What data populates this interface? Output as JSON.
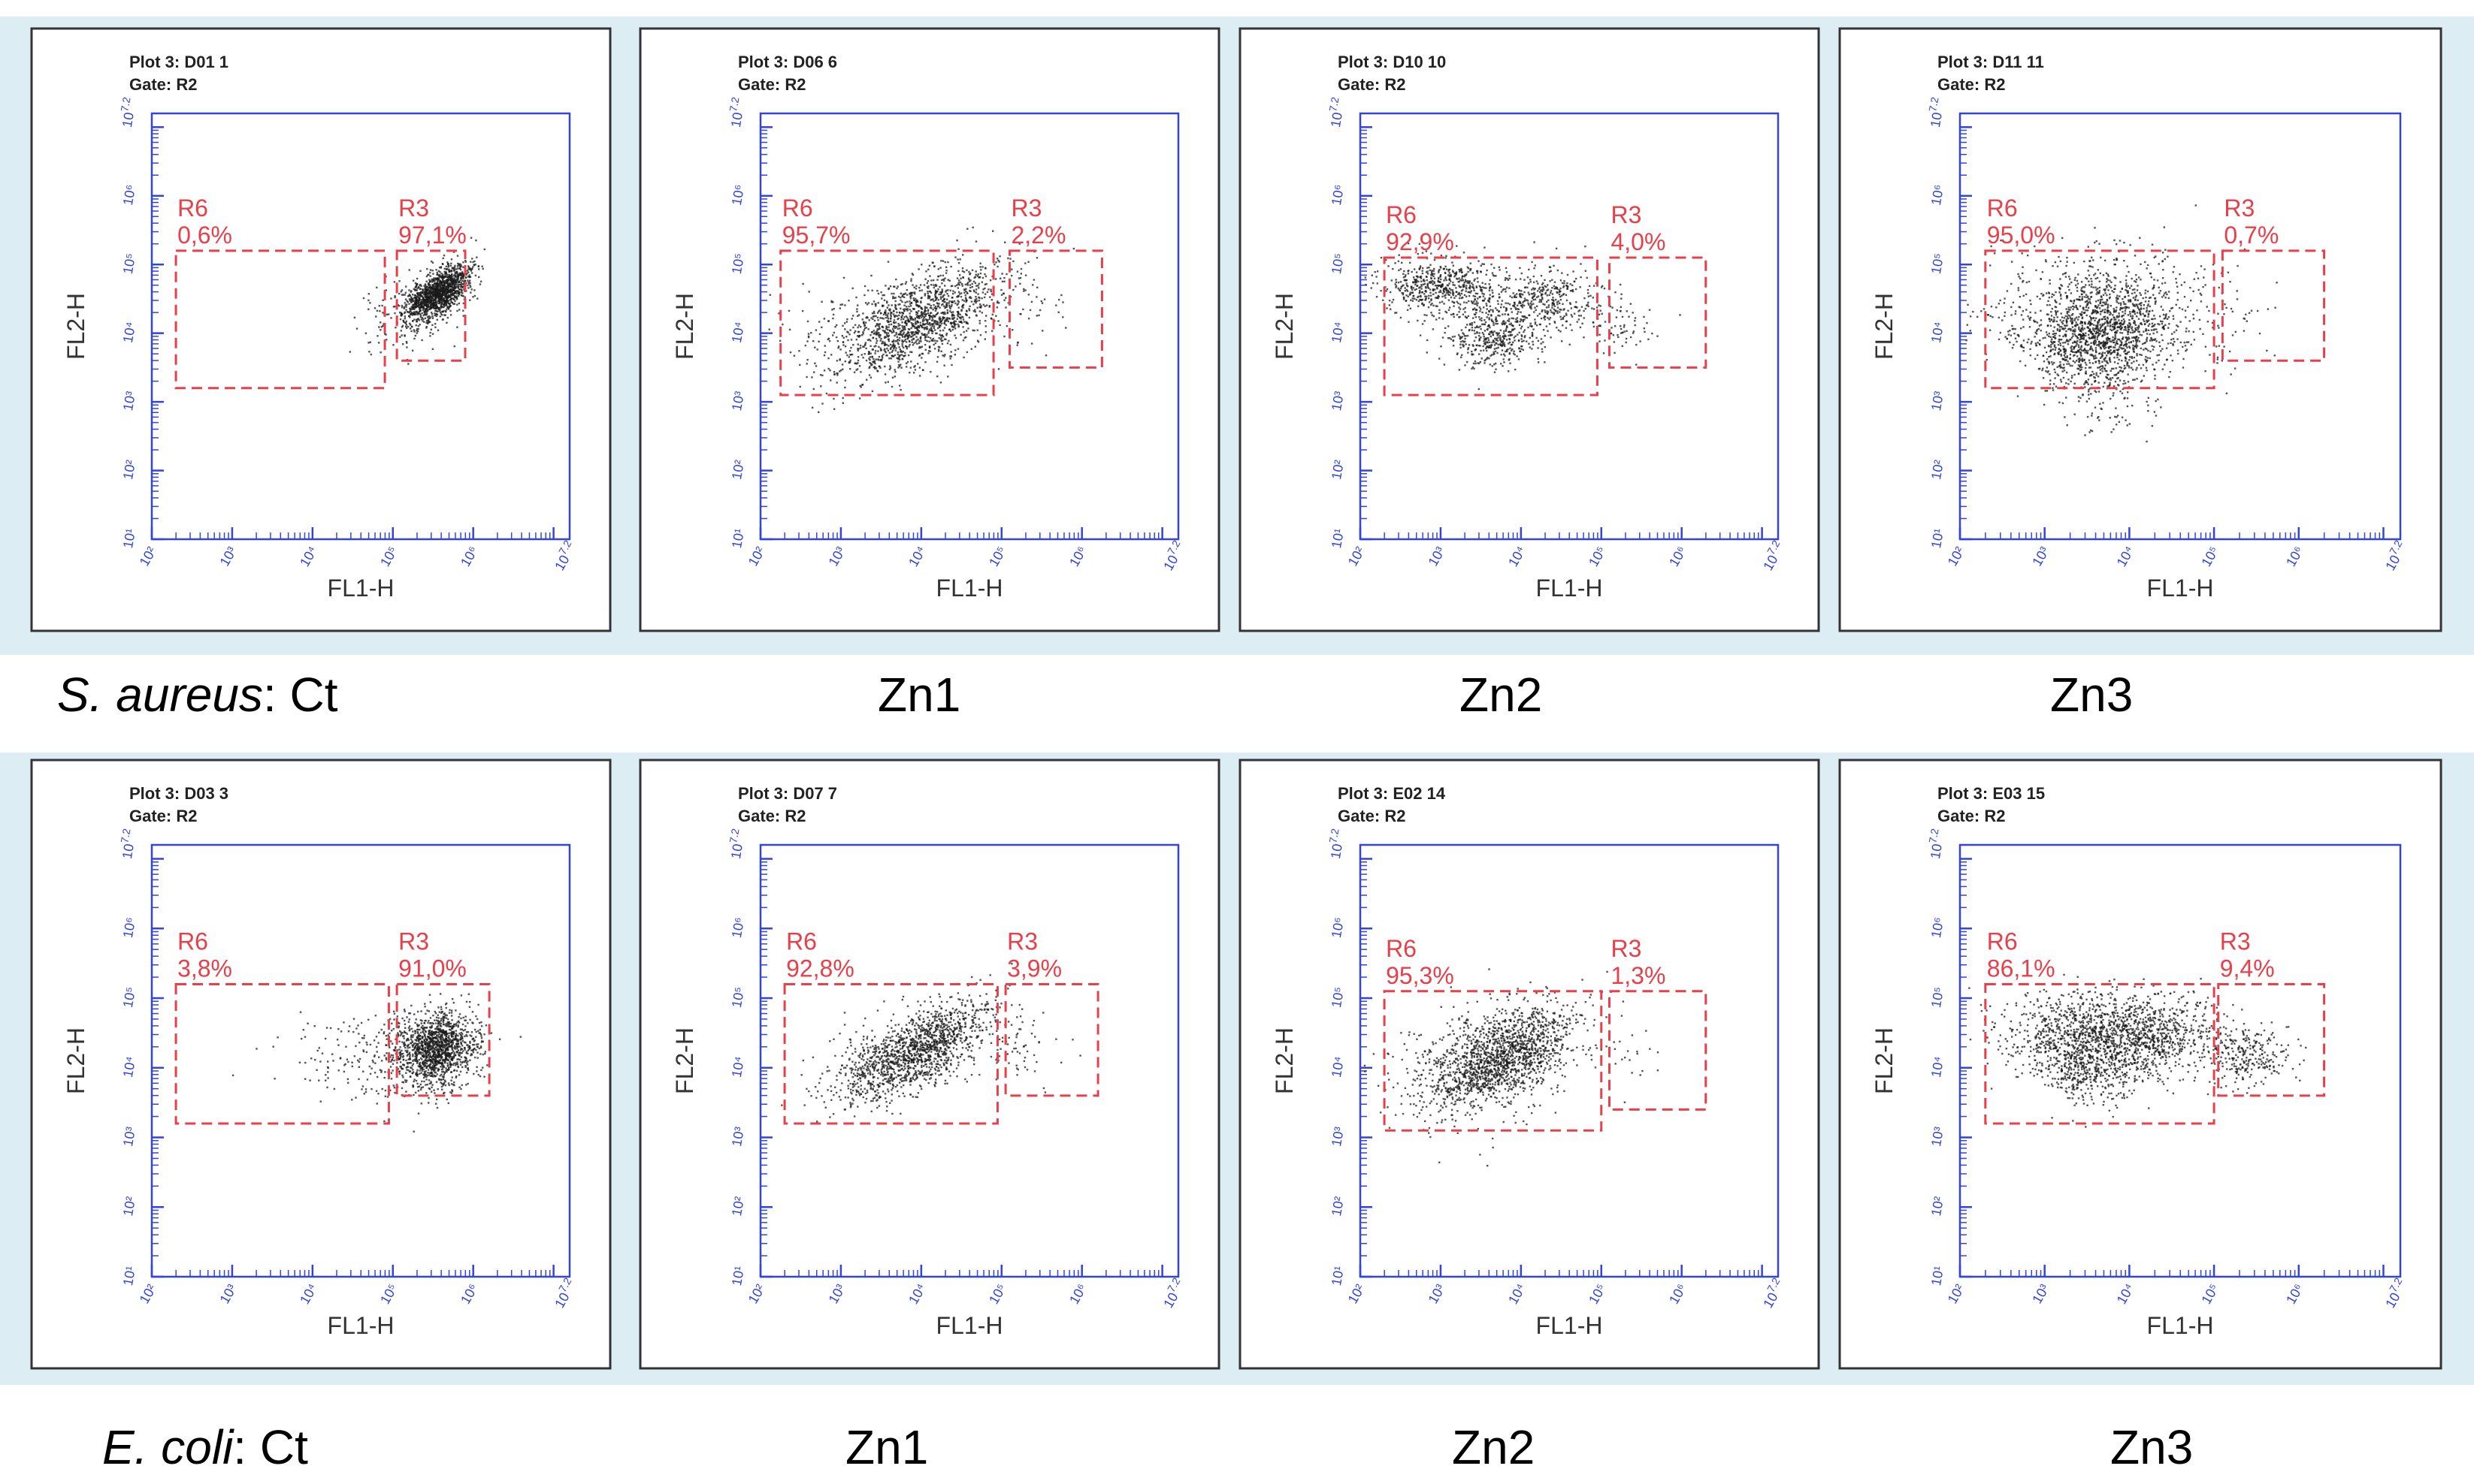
{
  "chart_data": [
    {
      "type": "scatter",
      "species": "S. aureus",
      "group": "Ct",
      "plot_title": "Plot 3: D01 1",
      "gate": "Gate: R2",
      "xlabel": "FL1-H",
      "ylabel": "FL2-H",
      "xlim": [
        2,
        7.2
      ],
      "ylim": [
        1,
        7.2
      ],
      "x_ticks": [
        {
          "v": 2,
          "label": "10²"
        },
        {
          "v": 3,
          "label": "10³"
        },
        {
          "v": 4,
          "label": "10⁴"
        },
        {
          "v": 5,
          "label": "10⁵"
        },
        {
          "v": 6,
          "label": "10⁶"
        },
        {
          "v": 7.2,
          "label": "10^7.2"
        }
      ],
      "y_ticks": [
        {
          "v": 1,
          "label": "10¹"
        },
        {
          "v": 2,
          "label": "10²"
        },
        {
          "v": 3,
          "label": "10³"
        },
        {
          "v": 4,
          "label": "10⁴"
        },
        {
          "v": 5,
          "label": "10⁵"
        },
        {
          "v": 6,
          "label": "10⁶"
        },
        {
          "v": 7.2,
          "label": "10^7.2"
        }
      ],
      "regions": [
        {
          "name": "R6",
          "percent": "0,6%",
          "x": [
            2.3,
            4.9
          ],
          "y": [
            3.2,
            5.2
          ]
        },
        {
          "name": "R3",
          "percent": "97,1%",
          "x": [
            5.05,
            5.9
          ],
          "y": [
            3.6,
            5.2
          ]
        }
      ],
      "clusters": [
        {
          "cx": 5.55,
          "cy": 4.6,
          "sx": 0.2,
          "sy": 0.2,
          "rho": 0.6,
          "n": 1400
        },
        {
          "cx": 5.2,
          "cy": 4.3,
          "sx": 0.35,
          "sy": 0.3,
          "rho": 0.3,
          "n": 150
        }
      ],
      "seed": 11
    },
    {
      "type": "scatter",
      "species": "S. aureus",
      "group": "Zn1",
      "plot_title": "Plot 3: D06 6",
      "gate": "Gate: R2",
      "xlabel": "FL1-H",
      "ylabel": "FL2-H",
      "xlim": [
        2,
        7.2
      ],
      "ylim": [
        1,
        7.2
      ],
      "x_ticks": [
        {
          "v": 2,
          "label": "10²"
        },
        {
          "v": 3,
          "label": "10³"
        },
        {
          "v": 4,
          "label": "10⁴"
        },
        {
          "v": 5,
          "label": "10⁵"
        },
        {
          "v": 6,
          "label": "10⁶"
        },
        {
          "v": 7.2,
          "label": "10^7.2"
        }
      ],
      "y_ticks": [
        {
          "v": 1,
          "label": "10¹"
        },
        {
          "v": 2,
          "label": "10²"
        },
        {
          "v": 3,
          "label": "10³"
        },
        {
          "v": 4,
          "label": "10⁴"
        },
        {
          "v": 5,
          "label": "10⁵"
        },
        {
          "v": 6,
          "label": "10⁶"
        },
        {
          "v": 7.2,
          "label": "10^7.2"
        }
      ],
      "regions": [
        {
          "name": "R6",
          "percent": "95,7%",
          "x": [
            2.25,
            4.9
          ],
          "y": [
            3.1,
            5.2
          ]
        },
        {
          "name": "R3",
          "percent": "2,2%",
          "x": [
            5.1,
            6.25
          ],
          "y": [
            3.5,
            5.2
          ]
        }
      ],
      "clusters": [
        {
          "cx": 4.0,
          "cy": 4.2,
          "sx": 0.5,
          "sy": 0.4,
          "rho": 0.6,
          "n": 1300
        },
        {
          "cx": 3.3,
          "cy": 4.0,
          "sx": 0.5,
          "sy": 0.4,
          "rho": 0.2,
          "n": 250
        },
        {
          "cx": 5.4,
          "cy": 4.3,
          "sx": 0.3,
          "sy": 0.3,
          "rho": 0.0,
          "n": 35
        }
      ],
      "seed": 23
    },
    {
      "type": "scatter",
      "species": "S. aureus",
      "group": "Zn2",
      "plot_title": "Plot 3: D10 10",
      "gate": "Gate: R2",
      "xlabel": "FL1-H",
      "ylabel": "FL2-H",
      "xlim": [
        2,
        7.2
      ],
      "ylim": [
        1,
        7.2
      ],
      "x_ticks": [
        {
          "v": 2,
          "label": "10²"
        },
        {
          "v": 3,
          "label": "10³"
        },
        {
          "v": 4,
          "label": "10⁴"
        },
        {
          "v": 5,
          "label": "10⁵"
        },
        {
          "v": 6,
          "label": "10⁶"
        },
        {
          "v": 7.2,
          "label": "10^7.2"
        }
      ],
      "y_ticks": [
        {
          "v": 1,
          "label": "10¹"
        },
        {
          "v": 2,
          "label": "10²"
        },
        {
          "v": 3,
          "label": "10³"
        },
        {
          "v": 4,
          "label": "10⁴"
        },
        {
          "v": 5,
          "label": "10⁵"
        },
        {
          "v": 6,
          "label": "10⁶"
        },
        {
          "v": 7.2,
          "label": "10^7.2"
        }
      ],
      "regions": [
        {
          "name": "R6",
          "percent": "92,9%",
          "x": [
            2.3,
            4.95
          ],
          "y": [
            3.1,
            5.1
          ]
        },
        {
          "name": "R3",
          "percent": "4,0%",
          "x": [
            5.1,
            6.3
          ],
          "y": [
            3.5,
            5.1
          ]
        }
      ],
      "clusters": [
        {
          "cx": 3.0,
          "cy": 4.7,
          "sx": 0.35,
          "sy": 0.2,
          "rho": 0.0,
          "n": 550
        },
        {
          "cx": 3.6,
          "cy": 4.0,
          "sx": 0.3,
          "sy": 0.25,
          "rho": 0.0,
          "n": 450
        },
        {
          "cx": 4.3,
          "cy": 4.5,
          "sx": 0.4,
          "sy": 0.25,
          "rho": 0.0,
          "n": 400
        },
        {
          "cx": 5.3,
          "cy": 4.1,
          "sx": 0.25,
          "sy": 0.2,
          "rho": 0.0,
          "n": 60
        }
      ],
      "seed": 37
    },
    {
      "type": "scatter",
      "species": "S. aureus",
      "group": "Zn3",
      "plot_title": "Plot 3: D11 11",
      "gate": "Gate: R2",
      "xlabel": "FL1-H",
      "ylabel": "FL2-H",
      "xlim": [
        2,
        7.2
      ],
      "ylim": [
        1,
        7.2
      ],
      "x_ticks": [
        {
          "v": 2,
          "label": "10²"
        },
        {
          "v": 3,
          "label": "10³"
        },
        {
          "v": 4,
          "label": "10⁴"
        },
        {
          "v": 5,
          "label": "10⁵"
        },
        {
          "v": 6,
          "label": "10⁶"
        },
        {
          "v": 7.2,
          "label": "10^7.2"
        }
      ],
      "y_ticks": [
        {
          "v": 1,
          "label": "10¹"
        },
        {
          "v": 2,
          "label": "10²"
        },
        {
          "v": 3,
          "label": "10³"
        },
        {
          "v": 4,
          "label": "10⁴"
        },
        {
          "v": 5,
          "label": "10⁵"
        },
        {
          "v": 6,
          "label": "10⁶"
        },
        {
          "v": 7.2,
          "label": "10^7.2"
        }
      ],
      "regions": [
        {
          "name": "R6",
          "percent": "95,0%",
          "x": [
            2.3,
            5.0
          ],
          "y": [
            3.2,
            5.2
          ]
        },
        {
          "name": "R3",
          "percent": "0,7%",
          "x": [
            5.1,
            6.3
          ],
          "y": [
            3.6,
            5.2
          ]
        }
      ],
      "clusters": [
        {
          "cx": 3.6,
          "cy": 3.9,
          "sx": 0.35,
          "sy": 0.35,
          "rho": 0.0,
          "n": 900
        },
        {
          "cx": 3.7,
          "cy": 4.3,
          "sx": 0.7,
          "sy": 0.45,
          "rho": 0.0,
          "n": 900
        },
        {
          "cx": 3.7,
          "cy": 3.2,
          "sx": 0.3,
          "sy": 0.35,
          "rho": 0.0,
          "n": 120
        },
        {
          "cx": 5.4,
          "cy": 4.2,
          "sx": 0.25,
          "sy": 0.25,
          "rho": 0.0,
          "n": 12
        }
      ],
      "seed": 51
    },
    {
      "type": "scatter",
      "species": "E. coli",
      "group": "Ct",
      "plot_title": "Plot 3: D03 3",
      "gate": "Gate: R2",
      "xlabel": "FL1-H",
      "ylabel": "FL2-H",
      "xlim": [
        2,
        7.2
      ],
      "ylim": [
        1,
        7.2
      ],
      "x_ticks": [
        {
          "v": 2,
          "label": "10²"
        },
        {
          "v": 3,
          "label": "10³"
        },
        {
          "v": 4,
          "label": "10⁴"
        },
        {
          "v": 5,
          "label": "10⁵"
        },
        {
          "v": 6,
          "label": "10⁶"
        },
        {
          "v": 7.2,
          "label": "10^7.2"
        }
      ],
      "y_ticks": [
        {
          "v": 1,
          "label": "10¹"
        },
        {
          "v": 2,
          "label": "10²"
        },
        {
          "v": 3,
          "label": "10³"
        },
        {
          "v": 4,
          "label": "10⁴"
        },
        {
          "v": 5,
          "label": "10⁵"
        },
        {
          "v": 6,
          "label": "10⁶"
        },
        {
          "v": 7.2,
          "label": "10^7.2"
        }
      ],
      "regions": [
        {
          "name": "R6",
          "percent": "3,8%",
          "x": [
            2.3,
            4.95
          ],
          "y": [
            3.2,
            5.2
          ]
        },
        {
          "name": "R3",
          "percent": "91,0%",
          "x": [
            5.05,
            6.2
          ],
          "y": [
            3.6,
            5.2
          ]
        }
      ],
      "clusters": [
        {
          "cx": 5.55,
          "cy": 4.3,
          "sx": 0.25,
          "sy": 0.25,
          "rho": 0.2,
          "n": 1300
        },
        {
          "cx": 5.1,
          "cy": 4.2,
          "sx": 0.4,
          "sy": 0.35,
          "rho": 0.0,
          "n": 250
        },
        {
          "cx": 4.2,
          "cy": 4.2,
          "sx": 0.5,
          "sy": 0.3,
          "rho": 0.0,
          "n": 60
        }
      ],
      "seed": 67
    },
    {
      "type": "scatter",
      "species": "E. coli",
      "group": "Zn1",
      "plot_title": "Plot 3: D07 7",
      "gate": "Gate: R2",
      "xlabel": "FL1-H",
      "ylabel": "FL2-H",
      "xlim": [
        2,
        7.2
      ],
      "ylim": [
        1,
        7.2
      ],
      "x_ticks": [
        {
          "v": 2,
          "label": "10²"
        },
        {
          "v": 3,
          "label": "10³"
        },
        {
          "v": 4,
          "label": "10⁴"
        },
        {
          "v": 5,
          "label": "10⁵"
        },
        {
          "v": 6,
          "label": "10⁶"
        },
        {
          "v": 7.2,
          "label": "10^7.2"
        }
      ],
      "y_ticks": [
        {
          "v": 1,
          "label": "10¹"
        },
        {
          "v": 2,
          "label": "10²"
        },
        {
          "v": 3,
          "label": "10³"
        },
        {
          "v": 4,
          "label": "10⁴"
        },
        {
          "v": 5,
          "label": "10⁵"
        },
        {
          "v": 6,
          "label": "10⁶"
        },
        {
          "v": 7.2,
          "label": "10^7.2"
        }
      ],
      "regions": [
        {
          "name": "R6",
          "percent": "92,8%",
          "x": [
            2.3,
            4.95
          ],
          "y": [
            3.2,
            5.2
          ]
        },
        {
          "name": "R3",
          "percent": "3,9%",
          "x": [
            5.05,
            6.2
          ],
          "y": [
            3.6,
            5.2
          ]
        }
      ],
      "clusters": [
        {
          "cx": 4.0,
          "cy": 4.3,
          "sx": 0.45,
          "sy": 0.35,
          "rho": 0.65,
          "n": 1200
        },
        {
          "cx": 3.4,
          "cy": 4.0,
          "sx": 0.4,
          "sy": 0.3,
          "rho": 0.3,
          "n": 250
        },
        {
          "cx": 5.2,
          "cy": 4.3,
          "sx": 0.3,
          "sy": 0.25,
          "rho": 0.0,
          "n": 60
        }
      ],
      "seed": 79
    },
    {
      "type": "scatter",
      "species": "E. coli",
      "group": "Zn2",
      "plot_title": "Plot 3: E02 14",
      "gate": "Gate: R2",
      "xlabel": "FL1-H",
      "ylabel": "FL2-H",
      "xlim": [
        2,
        7.2
      ],
      "ylim": [
        1,
        7.2
      ],
      "x_ticks": [
        {
          "v": 2,
          "label": "10²"
        },
        {
          "v": 3,
          "label": "10³"
        },
        {
          "v": 4,
          "label": "10⁴"
        },
        {
          "v": 5,
          "label": "10⁵"
        },
        {
          "v": 6,
          "label": "10⁶"
        },
        {
          "v": 7.2,
          "label": "10^7.2"
        }
      ],
      "y_ticks": [
        {
          "v": 1,
          "label": "10¹"
        },
        {
          "v": 2,
          "label": "10²"
        },
        {
          "v": 3,
          "label": "10³"
        },
        {
          "v": 4,
          "label": "10⁴"
        },
        {
          "v": 5,
          "label": "10⁵"
        },
        {
          "v": 6,
          "label": "10⁶"
        },
        {
          "v": 7.2,
          "label": "10^7.2"
        }
      ],
      "regions": [
        {
          "name": "R6",
          "percent": "95,3%",
          "x": [
            2.3,
            5.0
          ],
          "y": [
            3.1,
            5.1
          ]
        },
        {
          "name": "R3",
          "percent": "1,3%",
          "x": [
            5.1,
            6.3
          ],
          "y": [
            3.4,
            5.1
          ]
        }
      ],
      "clusters": [
        {
          "cx": 3.8,
          "cy": 4.2,
          "sx": 0.45,
          "sy": 0.35,
          "rho": 0.5,
          "n": 1300
        },
        {
          "cx": 3.4,
          "cy": 4.0,
          "sx": 0.6,
          "sy": 0.45,
          "rho": 0.2,
          "n": 400
        },
        {
          "cx": 5.3,
          "cy": 4.2,
          "sx": 0.25,
          "sy": 0.2,
          "rho": 0.0,
          "n": 22
        }
      ],
      "seed": 97
    },
    {
      "type": "scatter",
      "species": "E. coli",
      "group": "Zn3",
      "plot_title": "Plot 3: E03 15",
      "gate": "Gate: R2",
      "xlabel": "FL1-H",
      "ylabel": "FL2-H",
      "xlim": [
        2,
        7.2
      ],
      "ylim": [
        1,
        7.2
      ],
      "x_ticks": [
        {
          "v": 2,
          "label": "10²"
        },
        {
          "v": 3,
          "label": "10³"
        },
        {
          "v": 4,
          "label": "10⁴"
        },
        {
          "v": 5,
          "label": "10⁵"
        },
        {
          "v": 6,
          "label": "10⁶"
        },
        {
          "v": 7.2,
          "label": "10^7.2"
        }
      ],
      "y_ticks": [
        {
          "v": 1,
          "label": "10¹"
        },
        {
          "v": 2,
          "label": "10²"
        },
        {
          "v": 3,
          "label": "10³"
        },
        {
          "v": 4,
          "label": "10⁴"
        },
        {
          "v": 5,
          "label": "10⁵"
        },
        {
          "v": 6,
          "label": "10⁶"
        },
        {
          "v": 7.2,
          "label": "10^7.2"
        }
      ],
      "regions": [
        {
          "name": "R6",
          "percent": "86,1%",
          "x": [
            2.3,
            5.0
          ],
          "y": [
            3.2,
            5.2
          ]
        },
        {
          "name": "R3",
          "percent": "9,4%",
          "x": [
            5.05,
            6.3
          ],
          "y": [
            3.6,
            5.2
          ]
        }
      ],
      "clusters": [
        {
          "cx": 3.6,
          "cy": 4.5,
          "sx": 0.55,
          "sy": 0.3,
          "rho": 0.0,
          "n": 1100
        },
        {
          "cx": 3.5,
          "cy": 4.0,
          "sx": 0.3,
          "sy": 0.25,
          "rho": 0.0,
          "n": 400
        },
        {
          "cx": 4.4,
          "cy": 4.5,
          "sx": 0.4,
          "sy": 0.3,
          "rho": 0.0,
          "n": 400
        },
        {
          "cx": 5.4,
          "cy": 4.2,
          "sx": 0.25,
          "sy": 0.2,
          "rho": 0.0,
          "n": 250
        }
      ],
      "seed": 113
    }
  ],
  "captions": {
    "row1": {
      "species": "S. aureus",
      "ct_suffix": ":  Ct",
      "zn1": "Zn1",
      "zn2": "Zn2",
      "zn3": "Zn3"
    },
    "row2": {
      "species": "E. coli",
      "ct_suffix": ": Ct",
      "zn1": "Zn1",
      "zn2": "Zn2",
      "zn3": "Zn3"
    }
  },
  "colors": {
    "axis": "#3344dd",
    "region": "#e8404a",
    "dot": "#1a1a1a",
    "panel_bg": "#dceef3",
    "frame": "#333333"
  }
}
